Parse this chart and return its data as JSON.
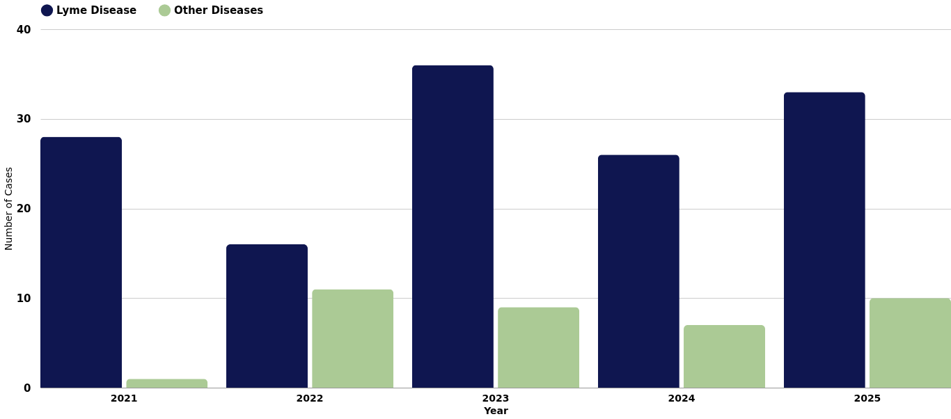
{
  "chart_data": {
    "type": "bar",
    "xlabel": "Year",
    "ylabel": "Number of Cases",
    "categories": [
      "2021",
      "2022",
      "2023",
      "2024",
      "2025"
    ],
    "series": [
      {
        "name": "Lyme Disease",
        "color": "#0f1650",
        "values": [
          28,
          16,
          36,
          26,
          33
        ]
      },
      {
        "name": "Other Diseases",
        "color": "#abca95",
        "values": [
          1,
          11,
          9,
          7,
          10
        ]
      }
    ],
    "ylim": [
      0,
      40
    ],
    "yticks": [
      0,
      10,
      20,
      30,
      40
    ],
    "grid": "y",
    "legend": "top"
  }
}
